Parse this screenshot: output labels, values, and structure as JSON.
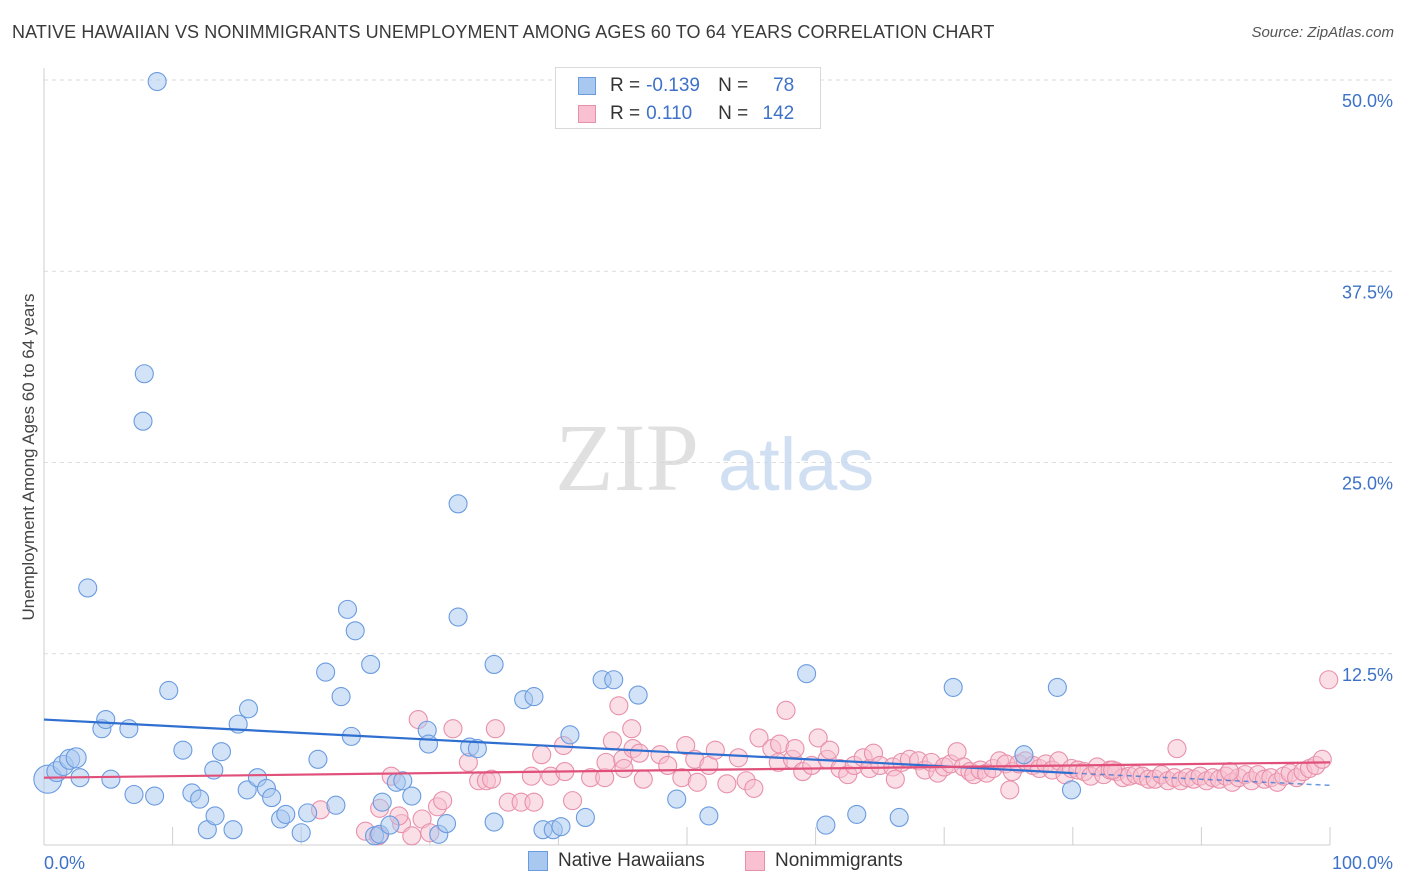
{
  "title": "NATIVE HAWAIIAN VS NONIMMIGRANTS UNEMPLOYMENT AMONG AGES 60 TO 64 YEARS CORRELATION CHART",
  "source": "Source: ZipAtlas.com",
  "watermark": {
    "zip": "ZIP",
    "atlas": "atlas"
  },
  "legend_top": {
    "rows": [
      {
        "r_label": "R =",
        "r_value": "-0.139",
        "n_label": "N =",
        "n_value": "78",
        "color": "#a8c8f0",
        "border": "#6a9be0"
      },
      {
        "r_label": "R =",
        "r_value": "0.110",
        "n_label": "N =",
        "n_value": "142",
        "color": "#f8c0d0",
        "border": "#e890aa"
      }
    ]
  },
  "legend_bottom": {
    "items": [
      {
        "label": "Native Hawaiians",
        "color": "#a8c8f0",
        "border": "#6a9be0"
      },
      {
        "label": "Nonimmigrants",
        "color": "#f8c0d0",
        "border": "#e890aa"
      }
    ]
  },
  "chart_data": {
    "type": "scatter",
    "title": "NATIVE HAWAIIAN VS NONIMMIGRANTS UNEMPLOYMENT AMONG AGES 60 TO 64 YEARS CORRELATION CHART",
    "xlabel": "",
    "ylabel": "Unemployment Among Ages 60 to 64 years",
    "xlim": [
      0,
      100
    ],
    "ylim": [
      0,
      50
    ],
    "x_tick_labels": [
      "0.0%",
      "100.0%"
    ],
    "y_ticks": [
      12.5,
      25.0,
      37.5,
      50.0
    ],
    "y_tick_labels": [
      "12.5%",
      "25.0%",
      "37.5%",
      "50.0%"
    ],
    "grid": true,
    "series": [
      {
        "name": "Native Hawaiians",
        "color": "#a8c8f0",
        "stroke": "#6a9be0",
        "trend_color": "#2f6fd0",
        "trend": {
          "x0": 0,
          "y0": 8.2,
          "x1": 80,
          "y1": 4.7,
          "dash_to_x": 100,
          "dash_to_y": 3.9
        },
        "points": [
          [
            0.3,
            4.3
          ],
          [
            1,
            4.8
          ],
          [
            1.5,
            5.2
          ],
          [
            2,
            5.6
          ],
          [
            2.5,
            5.7
          ],
          [
            2.8,
            4.4
          ],
          [
            3.4,
            16.8
          ],
          [
            4.5,
            7.6
          ],
          [
            4.8,
            8.2
          ],
          [
            5.2,
            4.3
          ],
          [
            6.6,
            7.6
          ],
          [
            7,
            3.3
          ],
          [
            7.8,
            30.8
          ],
          [
            7.7,
            27.7
          ],
          [
            8.6,
            3.2
          ],
          [
            8.8,
            49.9
          ],
          [
            9.7,
            10.1
          ],
          [
            10.8,
            6.2
          ],
          [
            11.5,
            3.4
          ],
          [
            12.1,
            3.0
          ],
          [
            12.7,
            1.0
          ],
          [
            13.2,
            4.9
          ],
          [
            13.3,
            1.9
          ],
          [
            13.8,
            6.1
          ],
          [
            14.7,
            1.0
          ],
          [
            15.1,
            7.9
          ],
          [
            15.8,
            3.6
          ],
          [
            15.9,
            8.9
          ],
          [
            16.6,
            4.4
          ],
          [
            17.3,
            3.7
          ],
          [
            17.7,
            3.1
          ],
          [
            18.4,
            1.7
          ],
          [
            18.8,
            2.0
          ],
          [
            20,
            0.8
          ],
          [
            20.5,
            2.1
          ],
          [
            21.3,
            5.6
          ],
          [
            21.9,
            11.3
          ],
          [
            22.7,
            2.6
          ],
          [
            23.1,
            9.7
          ],
          [
            23.6,
            15.4
          ],
          [
            23.9,
            7.1
          ],
          [
            24.2,
            14.0
          ],
          [
            25.4,
            11.8
          ],
          [
            25.7,
            0.6
          ],
          [
            26.1,
            0.7
          ],
          [
            26.3,
            2.8
          ],
          [
            26.9,
            1.3
          ],
          [
            27.4,
            4.1
          ],
          [
            27.9,
            4.2
          ],
          [
            28.6,
            3.2
          ],
          [
            29.8,
            7.5
          ],
          [
            29.9,
            6.6
          ],
          [
            30.7,
            0.7
          ],
          [
            31.3,
            1.4
          ],
          [
            32.2,
            22.3
          ],
          [
            32.2,
            14.9
          ],
          [
            33.1,
            6.4
          ],
          [
            33.7,
            6.3
          ],
          [
            35,
            11.8
          ],
          [
            35,
            1.5
          ],
          [
            37.3,
            9.5
          ],
          [
            38.1,
            9.7
          ],
          [
            38.8,
            1.0
          ],
          [
            39.6,
            1.0
          ],
          [
            40.2,
            1.2
          ],
          [
            40.9,
            7.2
          ],
          [
            42.1,
            1.8
          ],
          [
            43.4,
            10.8
          ],
          [
            44.3,
            10.8
          ],
          [
            46.2,
            9.8
          ],
          [
            49.2,
            3.0
          ],
          [
            51.7,
            1.9
          ],
          [
            59.3,
            11.2
          ],
          [
            60.8,
            1.3
          ],
          [
            63.2,
            2.0
          ],
          [
            66.5,
            1.8
          ],
          [
            70.7,
            10.3
          ],
          [
            76.2,
            5.9
          ],
          [
            78.8,
            10.3
          ],
          [
            79.9,
            3.6
          ]
        ],
        "radii": [
          14,
          10,
          10,
          10,
          10,
          9,
          9,
          9,
          9,
          9,
          9,
          9,
          9,
          9,
          9,
          9,
          9,
          9,
          9,
          9,
          9,
          9,
          9,
          9,
          9,
          9,
          9,
          9,
          9,
          9,
          9,
          9,
          9,
          9,
          9,
          9,
          9,
          9,
          9,
          9,
          9,
          9,
          9,
          9,
          9,
          9,
          9,
          9,
          9,
          9,
          9,
          9,
          9,
          9,
          9,
          9,
          9,
          9,
          9,
          9,
          9,
          9,
          9,
          9,
          9,
          9,
          9,
          9,
          9,
          9,
          9,
          9,
          9,
          9,
          9,
          9,
          9,
          9
        ]
      },
      {
        "name": "Nonimmigrants",
        "color": "#f8c0d0",
        "stroke": "#e890aa",
        "trend_color": "#e0507a",
        "trend": {
          "x0": 0,
          "y0": 4.4,
          "x1": 100,
          "y1": 5.4
        },
        "points": [
          [
            21.5,
            2.3
          ],
          [
            25,
            0.9
          ],
          [
            26,
            0.6
          ],
          [
            26.1,
            2.4
          ],
          [
            27,
            4.5
          ],
          [
            27.8,
            1.4
          ],
          [
            27.6,
            1.9
          ],
          [
            28.6,
            0.6
          ],
          [
            29.1,
            8.2
          ],
          [
            29.4,
            1.7
          ],
          [
            30,
            0.8
          ],
          [
            30.6,
            2.5
          ],
          [
            31,
            2.9
          ],
          [
            31.8,
            7.6
          ],
          [
            33,
            5.4
          ],
          [
            33.8,
            4.2
          ],
          [
            34.4,
            4.2
          ],
          [
            34.8,
            4.3
          ],
          [
            35.1,
            7.6
          ],
          [
            36.1,
            2.8
          ],
          [
            37.1,
            2.8
          ],
          [
            37.9,
            4.5
          ],
          [
            38.1,
            2.8
          ],
          [
            38.7,
            5.9
          ],
          [
            39.4,
            4.5
          ],
          [
            40.4,
            6.5
          ],
          [
            40.5,
            4.8
          ],
          [
            41.1,
            2.9
          ],
          [
            42.5,
            4.4
          ],
          [
            43.6,
            4.4
          ],
          [
            43.7,
            5.4
          ],
          [
            44.2,
            6.8
          ],
          [
            44.7,
            9.1
          ],
          [
            45,
            5.6
          ],
          [
            45.1,
            5.0
          ],
          [
            45.7,
            7.6
          ],
          [
            45.8,
            6.3
          ],
          [
            46.3,
            6.0
          ],
          [
            46.6,
            4.3
          ],
          [
            47.9,
            5.9
          ],
          [
            48.5,
            5.2
          ],
          [
            49.6,
            4.4
          ],
          [
            49.9,
            6.5
          ],
          [
            50.6,
            5.6
          ],
          [
            50.8,
            4.1
          ],
          [
            51.7,
            5.2
          ],
          [
            52.2,
            6.2
          ],
          [
            53.1,
            4.0
          ],
          [
            54,
            5.7
          ],
          [
            54.6,
            4.2
          ],
          [
            55.2,
            3.7
          ],
          [
            55.6,
            7.0
          ],
          [
            56.6,
            6.3
          ],
          [
            57.1,
            5.4
          ],
          [
            57.2,
            6.6
          ],
          [
            57.7,
            8.8
          ],
          [
            58.2,
            5.6
          ],
          [
            58.4,
            6.3
          ],
          [
            59,
            4.8
          ],
          [
            59.7,
            5.2
          ],
          [
            60.2,
            7.0
          ],
          [
            60.9,
            5.6
          ],
          [
            61.1,
            6.2
          ],
          [
            61.9,
            5.0
          ],
          [
            62.5,
            4.6
          ],
          [
            63,
            5.2
          ],
          [
            63.7,
            5.7
          ],
          [
            64.2,
            5.0
          ],
          [
            64.5,
            6.0
          ],
          [
            65,
            5.2
          ],
          [
            66,
            5.1
          ],
          [
            66.7,
            5.4
          ],
          [
            67.3,
            5.6
          ],
          [
            68,
            5.5
          ],
          [
            68.5,
            4.9
          ],
          [
            69,
            5.4
          ],
          [
            69.5,
            4.7
          ],
          [
            70,
            5.1
          ],
          [
            70.5,
            5.3
          ],
          [
            71,
            6.1
          ],
          [
            71.5,
            5.1
          ],
          [
            72,
            4.8
          ],
          [
            72.3,
            4.6
          ],
          [
            72.8,
            4.9
          ],
          [
            73.3,
            4.7
          ],
          [
            73.8,
            5.0
          ],
          [
            74.3,
            5.5
          ],
          [
            74.8,
            5.3
          ],
          [
            75.3,
            4.8
          ],
          [
            75.8,
            5.3
          ],
          [
            76.3,
            5.5
          ],
          [
            76.9,
            5.2
          ],
          [
            77.4,
            5.0
          ],
          [
            77.9,
            5.3
          ],
          [
            78.4,
            4.9
          ],
          [
            78.9,
            5.5
          ],
          [
            79.4,
            4.6
          ],
          [
            79.9,
            5.0
          ],
          [
            80.4,
            4.9
          ],
          [
            80.9,
            4.8
          ],
          [
            81.4,
            4.5
          ],
          [
            81.9,
            5.1
          ],
          [
            82.4,
            4.6
          ],
          [
            82.9,
            4.9
          ],
          [
            83.4,
            4.8
          ],
          [
            83.9,
            4.4
          ],
          [
            84.4,
            4.5
          ],
          [
            84.9,
            4.6
          ],
          [
            85.4,
            4.5
          ],
          [
            85.9,
            4.3
          ],
          [
            86.4,
            4.3
          ],
          [
            86.9,
            4.6
          ],
          [
            87.4,
            4.2
          ],
          [
            87.9,
            4.4
          ],
          [
            88.4,
            4.2
          ],
          [
            88.9,
            4.4
          ],
          [
            89.4,
            4.3
          ],
          [
            89.9,
            4.5
          ],
          [
            90.4,
            4.2
          ],
          [
            90.9,
            4.4
          ],
          [
            91.4,
            4.3
          ],
          [
            91.9,
            4.5
          ],
          [
            92.4,
            4.1
          ],
          [
            92.9,
            4.4
          ],
          [
            93.4,
            4.6
          ],
          [
            93.9,
            4.2
          ],
          [
            94.4,
            4.6
          ],
          [
            94.9,
            4.3
          ],
          [
            95.4,
            4.4
          ],
          [
            95.9,
            4.1
          ],
          [
            96.4,
            4.5
          ],
          [
            96.9,
            4.7
          ],
          [
            97.4,
            4.4
          ],
          [
            97.9,
            4.8
          ],
          [
            98.4,
            5.0
          ],
          [
            98.9,
            5.2
          ],
          [
            99.4,
            5.6
          ],
          [
            99.9,
            10.8
          ],
          [
            66.2,
            4.3
          ],
          [
            75.1,
            3.6
          ],
          [
            83.1,
            4.9
          ],
          [
            88.1,
            6.3
          ],
          [
            92.2,
            4.8
          ]
        ],
        "radii": [
          9,
          9,
          9,
          9,
          9,
          9,
          9,
          9,
          9,
          9,
          9,
          9,
          9,
          9,
          9,
          9,
          9,
          9,
          9,
          9,
          9,
          9,
          9,
          9,
          9,
          9,
          9,
          9,
          9,
          9,
          9,
          9,
          9,
          9,
          9,
          9,
          9,
          9,
          9,
          9,
          9,
          9,
          9,
          9,
          9,
          9,
          9,
          9,
          9,
          9,
          9,
          9,
          9,
          9,
          9,
          9,
          9,
          9,
          9,
          9,
          9,
          9,
          9,
          9,
          9,
          9,
          9,
          9,
          9,
          9,
          9,
          9,
          9,
          9,
          9,
          9,
          9,
          9,
          9,
          9,
          9,
          9,
          9,
          9,
          9,
          9,
          9,
          9,
          9,
          9,
          9,
          9,
          9,
          9,
          9,
          9,
          9,
          9,
          9,
          9,
          9,
          9,
          9,
          9,
          9,
          9,
          9,
          9,
          9,
          9,
          9,
          9,
          9,
          9,
          9,
          9,
          9,
          9,
          9,
          9,
          9,
          9,
          9,
          9,
          9,
          9,
          9,
          9,
          9,
          9,
          9,
          9,
          9,
          9,
          9,
          9,
          9,
          9,
          9,
          9,
          9,
          9
        ]
      }
    ]
  }
}
